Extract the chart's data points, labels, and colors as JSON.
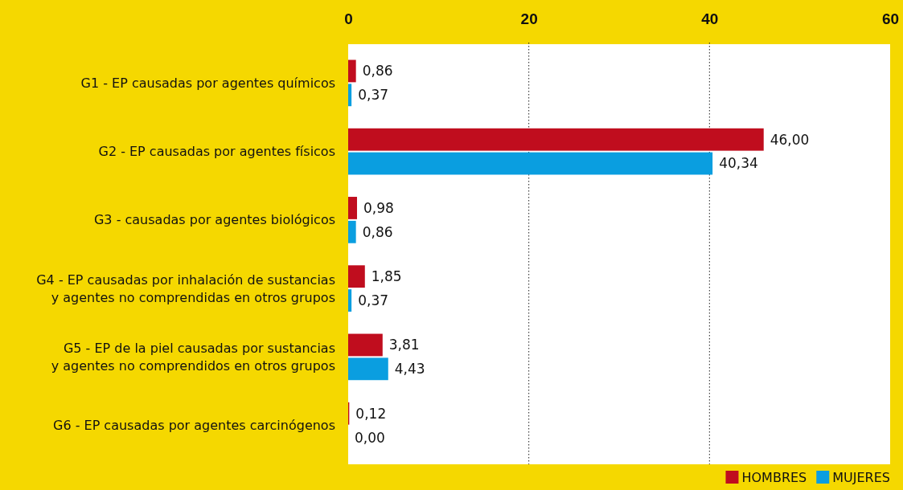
{
  "chart_data": {
    "type": "bar",
    "orientation": "horizontal",
    "categories": [
      "G1 - EP causadas por agentes químicos",
      "G2 - EP causadas por agentes físicos",
      "G3 -  causadas por agentes biológicos",
      "G4 - EP causadas por inhalación de sustancias\ny agentes no comprendidas en otros grupos",
      "G5 - EP de la piel causadas por sustancias\ny agentes no comprendidos en otros grupos",
      "G6 - EP causadas por agentes carcinógenos"
    ],
    "series": [
      {
        "name": "HOMBRES",
        "color": "#c00d1e",
        "values": [
          0.86,
          46.0,
          0.98,
          1.85,
          3.81,
          0.12
        ],
        "value_labels": [
          "0,86",
          "46,00",
          "0,98",
          "1,85",
          "3,81",
          "0,12"
        ]
      },
      {
        "name": "MUJERES",
        "color": "#0a9ee0",
        "values": [
          0.37,
          40.34,
          0.86,
          0.37,
          4.43,
          0.0
        ],
        "value_labels": [
          "0,37",
          "40,34",
          "0,86",
          "0,37",
          "4,43",
          "0,00"
        ]
      }
    ],
    "xlim": [
      0,
      60
    ],
    "xticks": [
      0,
      20,
      40,
      60
    ],
    "grid": "x",
    "legend": "bottom right"
  }
}
